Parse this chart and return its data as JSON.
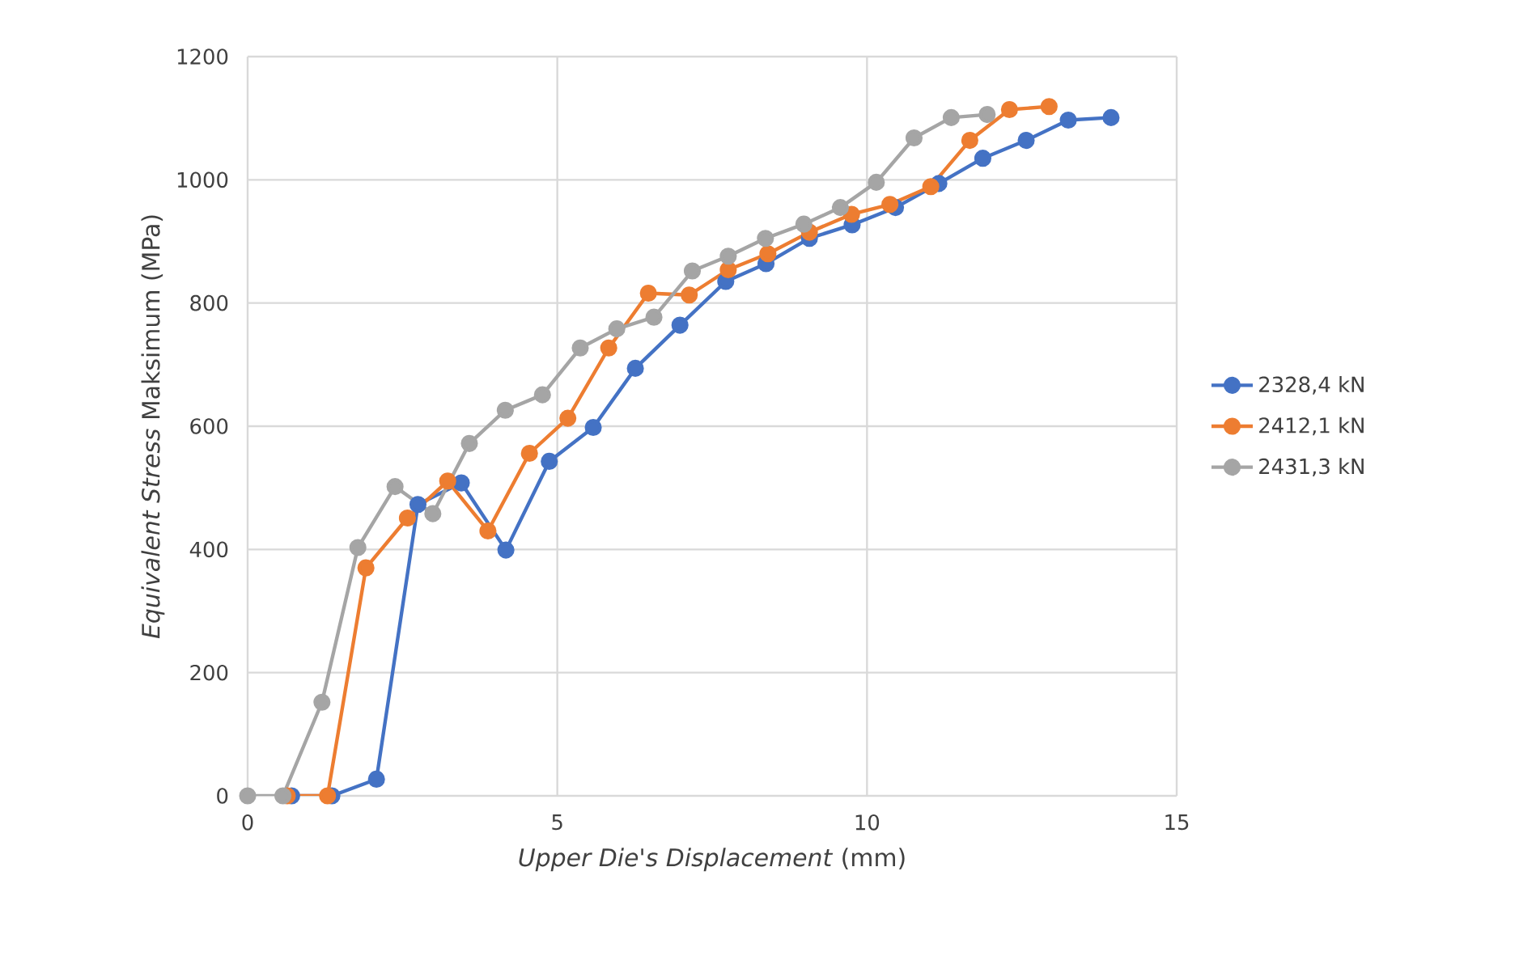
{
  "chart_data": {
    "type": "line",
    "xlabel": "*Upper Die's Displacement* (mm)",
    "ylabel": "*Equivalent Stress* Maksimum (MPa)",
    "xlim": [
      0,
      15
    ],
    "xticks": [
      0,
      5,
      10,
      15
    ],
    "ylim": [
      0,
      1200
    ],
    "yticks": [
      0,
      200,
      400,
      600,
      800,
      1000,
      1200
    ],
    "grid": true,
    "legend": "right",
    "marker": "circle",
    "line_style": "solid",
    "series": [
      {
        "name": "2328,4 kN",
        "color": "#4472c4",
        "x": [
          0.71,
          1.36,
          2.08,
          2.75,
          3.45,
          4.17,
          4.87,
          5.58,
          6.26,
          6.98,
          7.72,
          8.37,
          9.07,
          9.76,
          10.46,
          11.16,
          11.87,
          12.57,
          13.25,
          13.94
        ],
        "values": [
          0,
          0,
          27,
          473,
          508,
          399,
          543,
          598,
          694,
          764,
          835,
          864,
          905,
          927,
          955,
          994,
          1035,
          1064,
          1097,
          1101
        ]
      },
      {
        "name": "2412,1 kN",
        "color": "#ed7d31",
        "x": [
          0.64,
          1.29,
          1.91,
          2.58,
          3.23,
          3.88,
          4.55,
          5.17,
          5.83,
          6.47,
          7.13,
          7.76,
          8.4,
          9.07,
          9.75,
          10.37,
          11.03,
          11.66,
          12.3,
          12.94
        ],
        "values": [
          0,
          0,
          370,
          451,
          511,
          430,
          556,
          613,
          727,
          816,
          813,
          854,
          880,
          915,
          944,
          960,
          989,
          1064,
          1114,
          1119
        ]
      },
      {
        "name": "2431,3 kN",
        "color": "#a5a5a5",
        "x": [
          0,
          0.57,
          1.2,
          1.78,
          2.38,
          2.99,
          3.58,
          4.16,
          4.76,
          5.37,
          5.96,
          6.56,
          7.18,
          7.76,
          8.36,
          8.98,
          9.57,
          10.15,
          10.76,
          11.36,
          11.94
        ],
        "values": [
          0,
          0,
          152,
          403,
          502,
          458,
          572,
          626,
          651,
          727,
          758,
          777,
          852,
          876,
          905,
          928,
          955,
          996,
          1068,
          1101,
          1106
        ]
      }
    ]
  }
}
